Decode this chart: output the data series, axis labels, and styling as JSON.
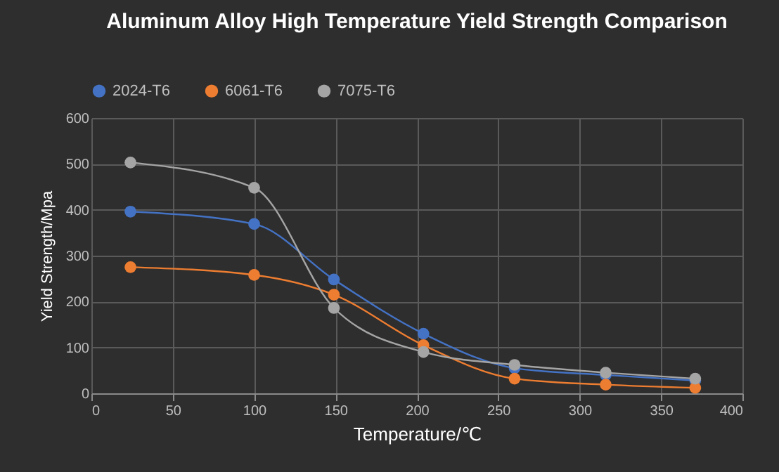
{
  "chart_data": {
    "type": "line",
    "title": "Aluminum Alloy High Temperature Yield Strength Comparison",
    "xlabel": "Temperature/℃",
    "ylabel": "Yield Strength/Mpa",
    "x": [
      24,
      100,
      149,
      204,
      260,
      316,
      371
    ],
    "series": [
      {
        "name": "2024-T6",
        "color": "#4472c4",
        "values": [
          396,
          369,
          248,
          130,
          55,
          40,
          28
        ]
      },
      {
        "name": "6061-T6",
        "color": "#ed7d31",
        "values": [
          275,
          258,
          215,
          105,
          32,
          19,
          12
        ]
      },
      {
        "name": "7075-T6",
        "color": "#a5a5a5",
        "values": [
          503,
          448,
          186,
          90,
          62,
          45,
          32
        ]
      }
    ],
    "xlim": [
      0,
      400
    ],
    "xticks": [
      0,
      50,
      100,
      150,
      200,
      250,
      300,
      350,
      400
    ],
    "ylim": [
      0,
      600
    ],
    "yticks": [
      0,
      100,
      200,
      300,
      400,
      500,
      600
    ],
    "grid": true,
    "legend": "top",
    "marker": "circle",
    "line_style": "solid"
  }
}
